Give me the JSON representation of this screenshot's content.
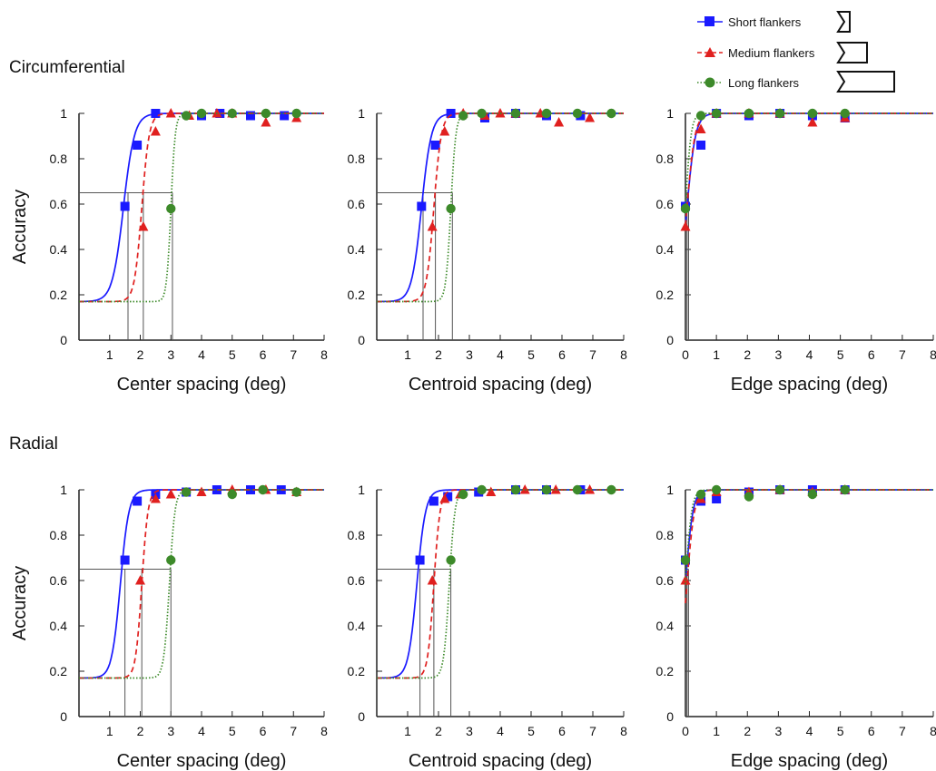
{
  "figure": {
    "row_labels": [
      "Circumferential",
      "Radial"
    ],
    "legend": [
      {
        "label": "Short flankers",
        "color": "#1a1aff",
        "marker": "square",
        "line": "solid",
        "icon": "short-flanker-shape"
      },
      {
        "label": "Medium flankers",
        "color": "#e0201f",
        "marker": "triangle",
        "line": "dashed",
        "icon": "medium-flanker-shape"
      },
      {
        "label": "Long flankers",
        "color": "#3d8a2a",
        "marker": "circle",
        "line": "dotted",
        "icon": "long-flanker-shape"
      }
    ]
  },
  "chart_data": [
    {
      "type": "line",
      "row": "Circumferential",
      "xlabel": "Center spacing (deg)",
      "ylabel": "Accuracy",
      "xlim": [
        0,
        8
      ],
      "ylim": [
        0,
        1
      ],
      "xticks": [
        "1",
        "2",
        "3",
        "4",
        "5",
        "6",
        "7",
        "8"
      ],
      "yticks": [
        "0",
        "0.2",
        "0.4",
        "0.6",
        "0.8",
        "1"
      ],
      "threshold": 0.65,
      "chance": 0.17,
      "series": [
        {
          "name": "Short flankers",
          "x": [
            1.5,
            1.9,
            2.5,
            4.0,
            4.6,
            5.6,
            6.7
          ],
          "y": [
            0.59,
            0.86,
            1.0,
            0.99,
            1.0,
            0.99,
            0.99
          ],
          "fit_mid": 1.45,
          "fit_width": 0.18,
          "threshold_x": 1.6
        },
        {
          "name": "Medium flankers",
          "x": [
            2.1,
            2.5,
            3.0,
            3.6,
            4.5,
            5.0,
            6.1,
            7.1
          ],
          "y": [
            0.5,
            0.92,
            1.0,
            0.99,
            1.0,
            1.0,
            0.96,
            0.98
          ],
          "fit_mid": 2.05,
          "fit_width": 0.12,
          "threshold_x": 2.1
        },
        {
          "name": "Long flankers",
          "x": [
            3.0,
            3.5,
            4.0,
            5.0,
            6.1,
            7.1
          ],
          "y": [
            0.58,
            0.99,
            1.0,
            1.0,
            1.0,
            1.0
          ],
          "fit_mid": 3.0,
          "fit_width": 0.07,
          "threshold_x": 3.05
        }
      ]
    },
    {
      "type": "line",
      "row": "Circumferential",
      "xlabel": "Centroid spacing (deg)",
      "ylabel": "",
      "xlim": [
        0,
        8
      ],
      "ylim": [
        0,
        1
      ],
      "xticks": [
        "1",
        "2",
        "3",
        "4",
        "5",
        "6",
        "7",
        "8"
      ],
      "yticks": [
        "0",
        "0.2",
        "0.4",
        "0.6",
        "0.8",
        "1"
      ],
      "threshold": 0.65,
      "chance": 0.17,
      "series": [
        {
          "name": "Short flankers",
          "x": [
            1.45,
            1.9,
            2.4,
            3.5,
            4.5,
            5.5,
            6.6
          ],
          "y": [
            0.59,
            0.86,
            1.0,
            0.98,
            1.0,
            0.99,
            0.99
          ],
          "fit_mid": 1.45,
          "fit_width": 0.16,
          "threshold_x": 1.5
        },
        {
          "name": "Medium flankers",
          "x": [
            1.8,
            2.2,
            2.8,
            3.5,
            4.0,
            4.5,
            5.3,
            5.9,
            6.9
          ],
          "y": [
            0.5,
            0.92,
            1.0,
            0.99,
            1.0,
            1.0,
            1.0,
            0.96,
            0.98
          ],
          "fit_mid": 1.85,
          "fit_width": 0.12,
          "threshold_x": 1.9
        },
        {
          "name": "Long flankers",
          "x": [
            2.4,
            2.8,
            3.4,
            4.5,
            5.5,
            6.5,
            7.6
          ],
          "y": [
            0.58,
            0.99,
            1.0,
            1.0,
            1.0,
            1.0,
            1.0
          ],
          "fit_mid": 2.4,
          "fit_width": 0.08,
          "threshold_x": 2.45
        }
      ]
    },
    {
      "type": "line",
      "row": "Circumferential",
      "xlabel": "Edge spacing (deg)",
      "ylabel": "",
      "xlim": [
        0,
        8
      ],
      "ylim": [
        0,
        1
      ],
      "xticks": [
        "0",
        "1",
        "2",
        "3",
        "4",
        "5",
        "6",
        "7",
        "8"
      ],
      "yticks": [
        "0",
        "0.2",
        "0.4",
        "0.6",
        "0.8",
        "1"
      ],
      "threshold": 0.65,
      "chance": 0.17,
      "series": [
        {
          "name": "Short flankers",
          "x": [
            0.0,
            0.5,
            1.0,
            2.05,
            3.05,
            4.1,
            5.15
          ],
          "y": [
            0.59,
            0.86,
            1.0,
            0.99,
            1.0,
            0.99,
            0.98
          ],
          "fit_mid": 0.05,
          "fit_width": 0.14,
          "threshold_x": 0.1
        },
        {
          "name": "Medium flankers",
          "x": [
            0.0,
            0.5,
            1.0,
            2.05,
            3.05,
            4.1,
            5.15
          ],
          "y": [
            0.5,
            0.93,
            1.0,
            1.0,
            1.0,
            0.96,
            0.98
          ],
          "fit_mid": 0.05,
          "fit_width": 0.13,
          "threshold_x": 0.1
        },
        {
          "name": "Long flankers",
          "x": [
            0.0,
            0.5,
            1.0,
            2.05,
            3.05,
            4.1,
            5.15
          ],
          "y": [
            0.58,
            0.99,
            1.0,
            1.0,
            1.0,
            1.0,
            1.0
          ],
          "fit_mid": 0.0,
          "fit_width": 0.09,
          "threshold_x": 0.05
        }
      ]
    },
    {
      "type": "line",
      "row": "Radial",
      "xlabel": "Center spacing (deg)",
      "ylabel": "Accuracy",
      "xlim": [
        0,
        8
      ],
      "ylim": [
        0,
        1
      ],
      "xticks": [
        "1",
        "2",
        "3",
        "4",
        "5",
        "6",
        "7",
        "8"
      ],
      "yticks": [
        "0",
        "0.2",
        "0.4",
        "0.6",
        "0.8",
        "1"
      ],
      "threshold": 0.65,
      "chance": 0.17,
      "series": [
        {
          "name": "Short flankers",
          "x": [
            1.5,
            1.9,
            2.5,
            3.5,
            4.5,
            5.6,
            6.6
          ],
          "y": [
            0.69,
            0.95,
            0.98,
            0.99,
            1.0,
            1.0,
            1.0
          ],
          "fit_mid": 1.35,
          "fit_width": 0.14,
          "threshold_x": 1.5
        },
        {
          "name": "Medium flankers",
          "x": [
            2.0,
            2.5,
            3.0,
            4.0,
            5.0,
            6.1,
            7.1
          ],
          "y": [
            0.6,
            0.96,
            0.98,
            0.99,
            1.0,
            1.0,
            0.99
          ],
          "fit_mid": 2.05,
          "fit_width": 0.1,
          "threshold_x": 2.05
        },
        {
          "name": "Long flankers",
          "x": [
            3.0,
            3.5,
            5.0,
            6.0,
            7.1
          ],
          "y": [
            0.69,
            0.99,
            0.98,
            1.0,
            0.99
          ],
          "fit_mid": 2.95,
          "fit_width": 0.09,
          "threshold_x": 3.0
        }
      ]
    },
    {
      "type": "line",
      "row": "Radial",
      "xlabel": "Centroid spacing (deg)",
      "ylabel": "",
      "xlim": [
        0,
        8
      ],
      "ylim": [
        0,
        1
      ],
      "xticks": [
        "1",
        "2",
        "3",
        "4",
        "5",
        "6",
        "7",
        "8"
      ],
      "yticks": [
        "0",
        "0.2",
        "0.4",
        "0.6",
        "0.8",
        "1"
      ],
      "threshold": 0.65,
      "chance": 0.17,
      "series": [
        {
          "name": "Short flankers",
          "x": [
            1.4,
            1.85,
            2.3,
            3.3,
            4.5,
            5.5,
            6.6
          ],
          "y": [
            0.69,
            0.95,
            0.97,
            0.99,
            1.0,
            1.0,
            1.0
          ],
          "fit_mid": 1.3,
          "fit_width": 0.14,
          "threshold_x": 1.4
        },
        {
          "name": "Medium flankers",
          "x": [
            1.8,
            2.2,
            2.7,
            3.7,
            4.8,
            5.8,
            6.9
          ],
          "y": [
            0.6,
            0.96,
            0.98,
            0.99,
            1.0,
            1.0,
            1.0
          ],
          "fit_mid": 1.85,
          "fit_width": 0.1,
          "threshold_x": 1.85
        },
        {
          "name": "Long flankers",
          "x": [
            2.4,
            2.8,
            3.4,
            4.5,
            5.5,
            6.5,
            7.6
          ],
          "y": [
            0.69,
            0.98,
            1.0,
            1.0,
            1.0,
            1.0,
            1.0
          ],
          "fit_mid": 2.35,
          "fit_width": 0.09,
          "threshold_x": 2.4
        }
      ]
    },
    {
      "type": "line",
      "row": "Radial",
      "xlabel": "Edge spacing (deg)",
      "ylabel": "",
      "xlim": [
        0,
        8
      ],
      "ylim": [
        0,
        1
      ],
      "xticks": [
        "0",
        "1",
        "2",
        "3",
        "4",
        "5",
        "6",
        "7",
        "8"
      ],
      "yticks": [
        "0",
        "0.2",
        "0.4",
        "0.6",
        "0.8",
        "1"
      ],
      "threshold": 0.65,
      "chance": 0.17,
      "series": [
        {
          "name": "Short flankers",
          "x": [
            0.0,
            0.5,
            1.0,
            2.05,
            3.05,
            4.1,
            5.15
          ],
          "y": [
            0.69,
            0.95,
            0.96,
            0.99,
            1.0,
            1.0,
            1.0
          ],
          "fit_mid": 0.0,
          "fit_width": 0.12,
          "threshold_x": 0.05
        },
        {
          "name": "Medium flankers",
          "x": [
            0.0,
            0.5,
            1.0,
            2.05,
            3.05,
            4.1,
            5.15
          ],
          "y": [
            0.6,
            0.96,
            0.99,
            0.99,
            1.0,
            0.99,
            1.0
          ],
          "fit_mid": 0.05,
          "fit_width": 0.12,
          "threshold_x": 0.1
        },
        {
          "name": "Long flankers",
          "x": [
            0.0,
            0.5,
            1.0,
            2.05,
            3.05,
            4.1,
            5.15
          ],
          "y": [
            0.69,
            0.98,
            1.0,
            0.97,
            1.0,
            0.98,
            1.0
          ],
          "fit_mid": 0.0,
          "fit_width": 0.1,
          "threshold_x": 0.05
        }
      ]
    }
  ]
}
